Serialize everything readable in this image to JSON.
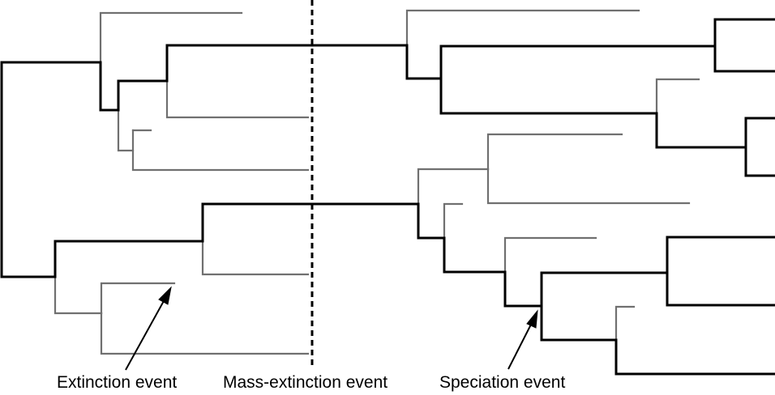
{
  "labels": {
    "extinction": "Extinction event",
    "mass_extinction": "Mass-extinction event",
    "speciation": "Speciation event"
  },
  "colors": {
    "extant_lineage": "#000000",
    "extinct_lineage": "#707070",
    "background": "#ffffff"
  }
}
